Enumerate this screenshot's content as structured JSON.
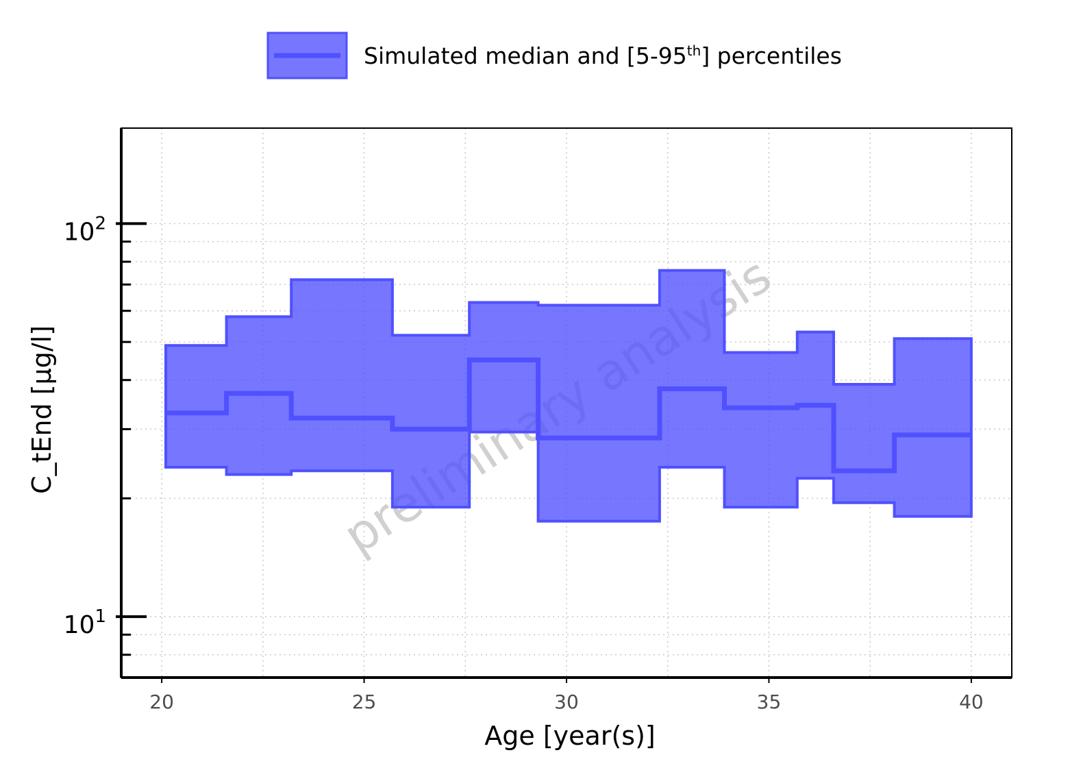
{
  "chart_data": {
    "type": "area",
    "title": "",
    "xlabel": "Age [year(s)]",
    "ylabel": "C_tEnd [µg/l]",
    "xlim": [
      19,
      41
    ],
    "ylim": [
      7,
      175
    ],
    "yscale": "log",
    "grid": true,
    "legend_position": "top",
    "x_ticks": [
      20,
      25,
      30,
      35,
      40
    ],
    "x_tick_labels": [
      "20",
      "25",
      "30",
      "35",
      "40"
    ],
    "y_major_ticks": [
      10,
      100
    ],
    "y_major_tick_labels": [
      "10",
      "10"
    ],
    "y_major_tick_exponents": [
      "1",
      "2"
    ],
    "y_minor_ticks": [
      8,
      9,
      20,
      30,
      40,
      50,
      60,
      70,
      80,
      90
    ],
    "series": [
      {
        "name": "Simulated median and [5-95th] percentiles",
        "legend_label": "Simulated median and [5-95",
        "legend_superscript": "th",
        "legend_suffix": "] percentiles",
        "color": "#5050ff",
        "bins": [
          {
            "x_start": 20.1,
            "x_end": 21.6,
            "median": 33,
            "p5": 24,
            "p95": 49
          },
          {
            "x_start": 21.6,
            "x_end": 23.2,
            "median": 37,
            "p5": 23,
            "p95": 58
          },
          {
            "x_start": 23.2,
            "x_end": 25.7,
            "median": 32,
            "p5": 23.5,
            "p95": 72
          },
          {
            "x_start": 25.7,
            "x_end": 27.6,
            "median": 30,
            "p5": 19,
            "p95": 52
          },
          {
            "x_start": 27.6,
            "x_end": 29.3,
            "median": 45,
            "p5": 29.5,
            "p95": 63
          },
          {
            "x_start": 29.3,
            "x_end": 32.3,
            "median": 28.5,
            "p5": 17.5,
            "p95": 62
          },
          {
            "x_start": 32.3,
            "x_end": 33.9,
            "median": 38,
            "p5": 24,
            "p95": 76
          },
          {
            "x_start": 33.9,
            "x_end": 35.7,
            "median": 34,
            "p5": 19,
            "p95": 47
          },
          {
            "x_start": 35.7,
            "x_end": 36.6,
            "median": 34.5,
            "p5": 22.5,
            "p95": 53
          },
          {
            "x_start": 36.6,
            "x_end": 38.1,
            "median": 23.5,
            "p5": 19.5,
            "p95": 39
          },
          {
            "x_start": 38.1,
            "x_end": 40.0,
            "median": 29,
            "p5": 18,
            "p95": 51
          }
        ]
      }
    ],
    "annotations": [
      {
        "text": "preliminary analysis",
        "rotation_deg": -33
      }
    ]
  }
}
